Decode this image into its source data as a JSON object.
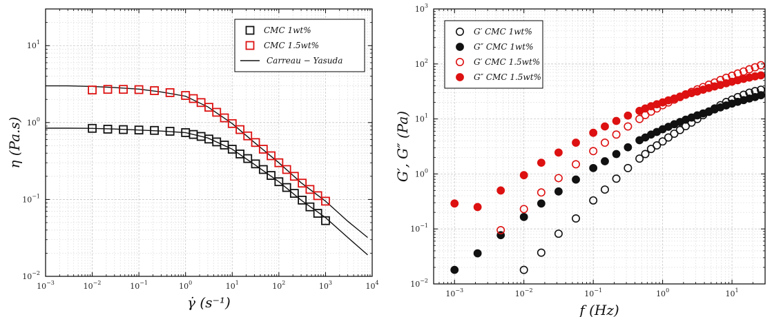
{
  "chart_data": [
    {
      "type": "scatter",
      "title": "",
      "xlabel": "γ̇ (s⁻¹)",
      "ylabel": "η (Pa.s)",
      "x_scale": "log",
      "y_scale": "log",
      "xlim": [
        0.001,
        10000
      ],
      "ylim": [
        0.01,
        30
      ],
      "x_ticks": [
        {
          "v": 0.001,
          "b": "10",
          "e": "−3"
        },
        {
          "v": 0.01,
          "b": "10",
          "e": "−2"
        },
        {
          "v": 0.1,
          "b": "10",
          "e": "−1"
        },
        {
          "v": 1,
          "b": "10",
          "e": "0"
        },
        {
          "v": 10,
          "b": "10",
          "e": "1"
        },
        {
          "v": 100,
          "b": "10",
          "e": "2"
        },
        {
          "v": 1000,
          "b": "10",
          "e": "3"
        },
        {
          "v": 10000,
          "b": "10",
          "e": "4"
        }
      ],
      "y_ticks": [
        {
          "v": 0.01,
          "b": "10",
          "e": "−2"
        },
        {
          "v": 0.1,
          "b": "10",
          "e": "−1"
        },
        {
          "v": 1,
          "b": "10",
          "e": "0"
        },
        {
          "v": 10,
          "b": "10",
          "e": "1"
        }
      ],
      "grid": true,
      "legend_position": "top-right",
      "series": [
        {
          "name": "CMC 1wt%",
          "color": "#111111",
          "marker": "square-open",
          "x": [
            0.01,
            0.0215,
            0.0464,
            0.1,
            0.215,
            0.464,
            1,
            1.47,
            2.15,
            3.16,
            4.64,
            6.81,
            10,
            14.7,
            21.5,
            31.6,
            46.4,
            68.1,
            100,
            147,
            215,
            316,
            464,
            681,
            1000
          ],
          "y": [
            0.84,
            0.82,
            0.81,
            0.8,
            0.79,
            0.77,
            0.74,
            0.7,
            0.66,
            0.61,
            0.56,
            0.51,
            0.45,
            0.39,
            0.34,
            0.29,
            0.245,
            0.205,
            0.17,
            0.143,
            0.12,
            0.098,
            0.08,
            0.066,
            0.053
          ]
        },
        {
          "name": "CMC 1.5wt%",
          "color": "#dd1111",
          "marker": "square-open",
          "x": [
            0.01,
            0.0215,
            0.0464,
            0.1,
            0.215,
            0.464,
            1,
            1.47,
            2.15,
            3.16,
            4.64,
            6.81,
            10,
            14.7,
            21.5,
            31.6,
            46.4,
            68.1,
            100,
            147,
            215,
            316,
            464,
            681,
            1000
          ],
          "y": [
            2.65,
            2.7,
            2.7,
            2.68,
            2.6,
            2.45,
            2.25,
            2.05,
            1.82,
            1.58,
            1.36,
            1.15,
            0.97,
            0.81,
            0.67,
            0.55,
            0.45,
            0.37,
            0.3,
            0.245,
            0.2,
            0.163,
            0.135,
            0.112,
            0.095
          ]
        }
      ],
      "fits": [
        {
          "name": "Carreau − Yasuda",
          "color": "#111111",
          "x": [
            0.001,
            0.003,
            0.01,
            0.03,
            0.1,
            0.3,
            1,
            3,
            10,
            30,
            100,
            300,
            1000,
            3000,
            8000
          ],
          "y": [
            0.845,
            0.845,
            0.84,
            0.825,
            0.8,
            0.775,
            0.74,
            0.63,
            0.45,
            0.285,
            0.17,
            0.098,
            0.058,
            0.032,
            0.019
          ]
        },
        {
          "name": "",
          "color": "#111111",
          "x": [
            0.001,
            0.003,
            0.01,
            0.03,
            0.1,
            0.3,
            1,
            3,
            10,
            30,
            100,
            300,
            1000,
            3000,
            8000
          ],
          "y": [
            3.0,
            3.0,
            2.95,
            2.85,
            2.72,
            2.5,
            2.2,
            1.6,
            0.97,
            0.55,
            0.3,
            0.165,
            0.095,
            0.052,
            0.032
          ]
        }
      ]
    },
    {
      "type": "scatter",
      "title": "",
      "xlabel": "f (Hz)",
      "ylabel": "G′, G″ (Pa)",
      "x_scale": "log",
      "y_scale": "log",
      "xlim": [
        0.0005,
        30
      ],
      "ylim": [
        0.01,
        1000
      ],
      "x_ticks": [
        {
          "v": 0.001,
          "b": "10",
          "e": "−3"
        },
        {
          "v": 0.01,
          "b": "10",
          "e": "−2"
        },
        {
          "v": 0.1,
          "b": "10",
          "e": "−1"
        },
        {
          "v": 1,
          "b": "10",
          "e": "0"
        },
        {
          "v": 10,
          "b": "10",
          "e": "1"
        }
      ],
      "y_ticks": [
        {
          "v": 0.01,
          "b": "10",
          "e": "−2"
        },
        {
          "v": 0.1,
          "b": "10",
          "e": "−1"
        },
        {
          "v": 1,
          "b": "10",
          "e": "0"
        },
        {
          "v": 10,
          "b": "10",
          "e": "1"
        },
        {
          "v": 100,
          "b": "10",
          "e": "2"
        },
        {
          "v": 1000,
          "b": "10",
          "e": "3"
        }
      ],
      "grid": true,
      "legend_position": "top-left",
      "series": [
        {
          "name": "G′ CMC 1wt%",
          "color": "#111111",
          "marker": "circle-open",
          "x": [
            0.01,
            0.0178,
            0.0316,
            0.0562,
            0.1,
            0.147,
            0.215,
            0.316,
            0.464,
            0.562,
            0.681,
            0.825,
            1,
            1.21,
            1.47,
            1.78,
            2.15,
            2.61,
            3.16,
            3.83,
            4.64,
            5.62,
            6.81,
            8.25,
            10,
            12.1,
            14.7,
            17.8,
            21.5,
            26.1
          ],
          "y": [
            0.018,
            0.037,
            0.082,
            0.155,
            0.33,
            0.52,
            0.82,
            1.28,
            1.9,
            2.3,
            2.85,
            3.3,
            3.9,
            4.6,
            5.4,
            6.3,
            7.4,
            8.6,
            10,
            11.7,
            13.5,
            15.5,
            17.8,
            20.3,
            22.5,
            25,
            27.5,
            30,
            32,
            34
          ]
        },
        {
          "name": "G″ CMC 1wt%",
          "color": "#111111",
          "marker": "circle-filled",
          "x": [
            0.001,
            0.00215,
            0.00464,
            0.01,
            0.0178,
            0.0316,
            0.0562,
            0.1,
            0.147,
            0.215,
            0.316,
            0.464,
            0.562,
            0.681,
            0.825,
            1,
            1.21,
            1.47,
            1.78,
            2.15,
            2.61,
            3.16,
            3.83,
            4.64,
            5.62,
            6.81,
            8.25,
            10,
            12.1,
            14.7,
            17.8,
            21.5,
            26.1
          ],
          "y": [
            0.018,
            0.036,
            0.077,
            0.165,
            0.29,
            0.48,
            0.79,
            1.28,
            1.7,
            2.3,
            3.05,
            4.1,
            4.6,
            5.2,
            5.8,
            6.5,
            7.2,
            8.0,
            8.8,
            9.7,
            10.6,
            11.6,
            12.6,
            13.7,
            14.9,
            16.2,
            17.6,
            19,
            20.5,
            22,
            23.5,
            25,
            27
          ]
        },
        {
          "name": "G′ CMC 1.5wt%",
          "color": "#dd1111",
          "marker": "circle-open",
          "x": [
            0.00464,
            0.01,
            0.0178,
            0.0316,
            0.0562,
            0.1,
            0.147,
            0.215,
            0.316,
            0.464,
            0.562,
            0.681,
            0.825,
            1,
            1.21,
            1.47,
            1.78,
            2.15,
            2.61,
            3.16,
            3.83,
            4.64,
            5.62,
            6.81,
            8.25,
            10,
            12.1,
            14.7,
            17.8,
            21.5,
            26.1
          ],
          "y": [
            0.095,
            0.23,
            0.46,
            0.84,
            1.5,
            2.6,
            3.7,
            5.2,
            7.3,
            10,
            11.8,
            13.6,
            15.5,
            17.8,
            20,
            22.5,
            25,
            28,
            31,
            34.5,
            38,
            42,
            46,
            51,
            56,
            61,
            67,
            73,
            80,
            87,
            95
          ]
        },
        {
          "name": "G″ CMC 1.5wt%",
          "color": "#dd1111",
          "marker": "circle-filled",
          "x": [
            0.001,
            0.00215,
            0.00464,
            0.01,
            0.0178,
            0.0316,
            0.0562,
            0.1,
            0.147,
            0.215,
            0.316,
            0.464,
            0.562,
            0.681,
            0.825,
            1,
            1.21,
            1.47,
            1.78,
            2.15,
            2.61,
            3.16,
            3.83,
            4.64,
            5.62,
            6.81,
            8.25,
            10,
            12.1,
            14.7,
            17.8,
            21.5,
            26.1
          ],
          "y": [
            0.29,
            0.25,
            0.5,
            0.95,
            1.6,
            2.45,
            3.7,
            5.6,
            7.3,
            9.2,
            11.5,
            14,
            15.5,
            17,
            18.5,
            20,
            21.8,
            23.5,
            25.5,
            27.5,
            29.5,
            31.5,
            34,
            36.5,
            39,
            41.5,
            44.5,
            47.5,
            50.5,
            53.5,
            56.5,
            59.5,
            62
          ]
        }
      ]
    }
  ]
}
